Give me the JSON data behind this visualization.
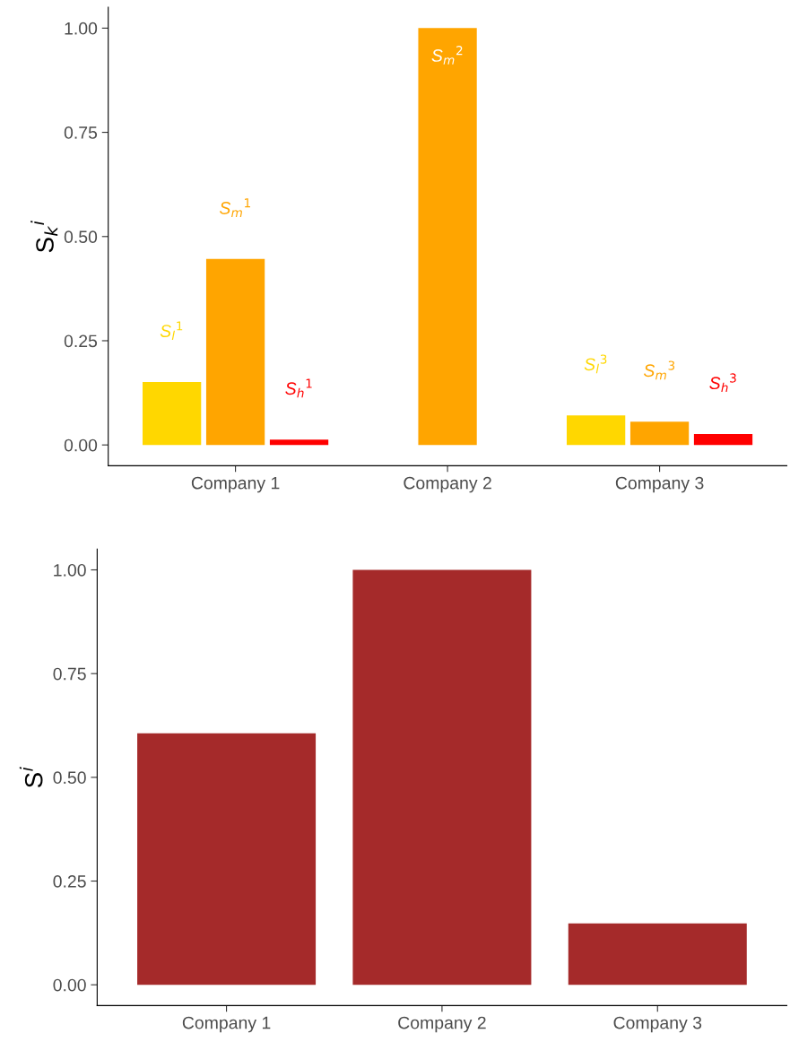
{
  "chart_data": [
    {
      "type": "bar",
      "ylabel": "S$_{k}$$^{i}$",
      "categories": [
        "Company 1",
        "Company 2",
        "Company 3"
      ],
      "ylim": [
        -0.05,
        1.05
      ],
      "yticks": [
        {
          "value": 0,
          "label": "0.00"
        },
        {
          "value": 0.25,
          "label": "0.25"
        },
        {
          "value": 0.5,
          "label": "0.50"
        },
        {
          "value": 0.75,
          "label": "0.75"
        },
        {
          "value": 1,
          "label": "1.00"
        }
      ],
      "series": [
        {
          "color": "#ffd700",
          "values": [
            0.151,
            null,
            0.071
          ]
        },
        {
          "color": "#ffa500",
          "values": [
            0.446,
            1.0,
            0.056
          ]
        },
        {
          "color": "#ff0000",
          "values": [
            0.013,
            null,
            0.026
          ]
        }
      ],
      "annotations": [
        "S$_{l}$$^{1}$",
        "S$_{m}$$^{1}$",
        "S$_{h}$$^{1}$",
        "S$_{m}$$^{2}$",
        "S$_{l}$$^{3}$",
        "S$_{m}$$^{3}$",
        "S$_{h}$$^{3}$"
      ]
    },
    {
      "type": "bar",
      "ylabel": "S$^{i}$",
      "categories": [
        "Company 1",
        "Company 2",
        "Company 3"
      ],
      "ylim": [
        -0.05,
        1.05
      ],
      "yticks": [
        {
          "value": 0,
          "label": "0.00"
        },
        {
          "value": 0.25,
          "label": "0.25"
        },
        {
          "value": 0.5,
          "label": "0.50"
        },
        {
          "value": 0.75,
          "label": "0.75"
        },
        {
          "value": 1,
          "label": "1.00"
        }
      ],
      "series": [
        {
          "color": "#a52a2a",
          "values": [
            0.606,
            1.0,
            0.148
          ]
        }
      ]
    }
  ]
}
